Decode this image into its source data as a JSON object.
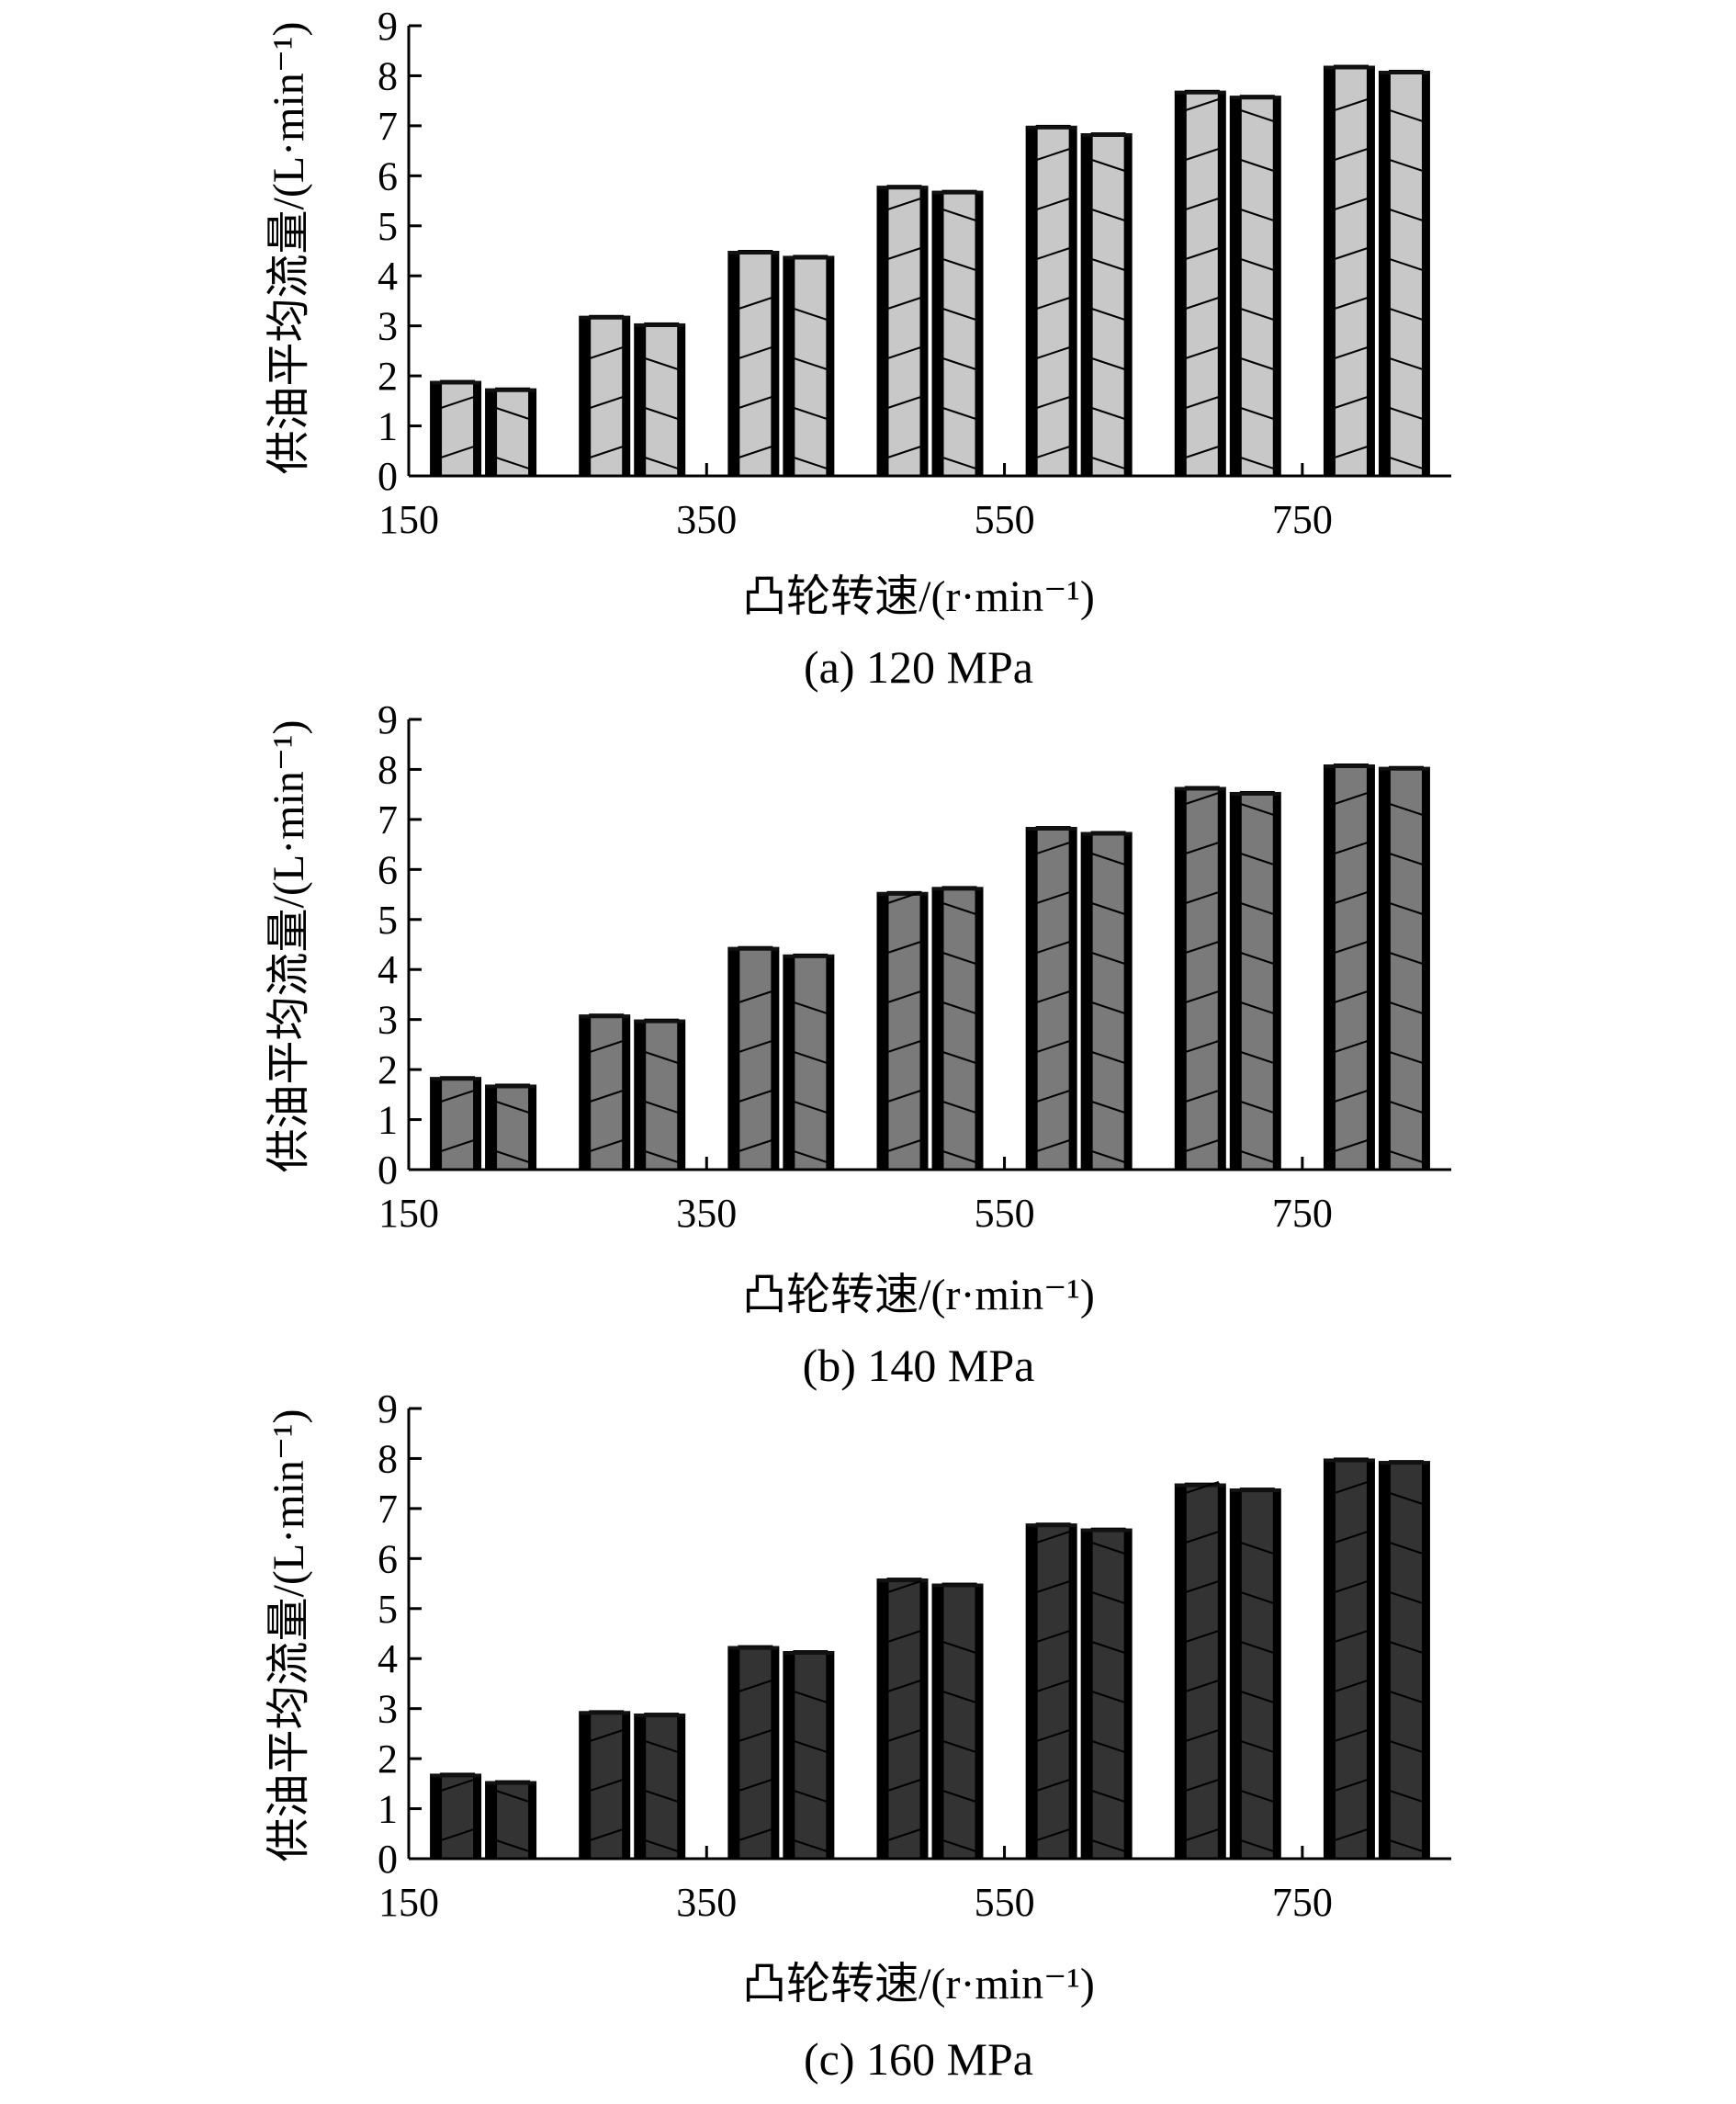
{
  "figure": {
    "panels": [
      {
        "caption": "(a) 120 MPa",
        "ylabel": "供油平均流量/(L·min⁻¹)",
        "xlabel": "凸轮转速/(r·min⁻¹)",
        "bar_color": "#c8c8c8"
      },
      {
        "caption": "(b) 140 MPa",
        "ylabel": "供油平均流量/(L·min⁻¹)",
        "xlabel": "凸轮转速/(r·min⁻¹)",
        "bar_color": "#7a7a7a"
      },
      {
        "caption": "(c) 160 MPa",
        "ylabel": "供油平均流量/(L·min⁻¹)",
        "xlabel": "凸轮转速/(r·min⁻¹)",
        "bar_color": "#333333"
      }
    ]
  },
  "chart_data": [
    {
      "type": "bar",
      "title": "(a) 120 MPa",
      "xlabel": "凸轮转速/(r·min⁻¹)",
      "ylabel": "供油平均流量/(L·min⁻¹)",
      "ylim": [
        0,
        9
      ],
      "yticks": [
        0,
        1,
        2,
        3,
        4,
        5,
        6,
        7,
        8,
        9
      ],
      "xlim": [
        150,
        850
      ],
      "xticks": [
        150,
        350,
        550,
        750
      ],
      "x": [
        200,
        300,
        400,
        500,
        600,
        700,
        800
      ],
      "series": [
        {
          "values": [
            1.9,
            3.2,
            4.5,
            5.8,
            7.0,
            7.7,
            8.2
          ]
        },
        {
          "values": [
            1.75,
            3.05,
            4.4,
            5.7,
            6.85,
            7.6,
            8.1
          ]
        }
      ],
      "grid": false,
      "bar_color": "#c8c8c8"
    },
    {
      "type": "bar",
      "title": "(b) 140 MPa",
      "xlabel": "凸轮转速/(r·min⁻¹)",
      "ylabel": "供油平均流量/(L·min⁻¹)",
      "ylim": [
        0,
        9
      ],
      "yticks": [
        0,
        1,
        2,
        3,
        4,
        5,
        6,
        7,
        8,
        9
      ],
      "xlim": [
        150,
        850
      ],
      "xticks": [
        150,
        350,
        550,
        750
      ],
      "x": [
        200,
        300,
        400,
        500,
        600,
        700,
        800
      ],
      "series": [
        {
          "values": [
            1.85,
            3.1,
            4.45,
            5.55,
            6.85,
            7.65,
            8.1
          ]
        },
        {
          "values": [
            1.7,
            3.0,
            4.3,
            5.65,
            6.75,
            7.55,
            8.05
          ]
        }
      ],
      "grid": false,
      "bar_color": "#7a7a7a"
    },
    {
      "type": "bar",
      "title": "(c) 160 MPa",
      "xlabel": "凸轮转速/(r·min⁻¹)",
      "ylabel": "供油平均流量/(L·min⁻¹)",
      "ylim": [
        0,
        9
      ],
      "yticks": [
        0,
        1,
        2,
        3,
        4,
        5,
        6,
        7,
        8,
        9
      ],
      "xlim": [
        150,
        850
      ],
      "xticks": [
        150,
        350,
        550,
        750
      ],
      "x": [
        200,
        300,
        400,
        500,
        600,
        700,
        800
      ],
      "series": [
        {
          "values": [
            1.7,
            2.95,
            4.25,
            5.6,
            6.7,
            7.5,
            8.0
          ]
        },
        {
          "values": [
            1.55,
            2.9,
            4.15,
            5.5,
            6.6,
            7.4,
            7.95
          ]
        }
      ],
      "grid": false,
      "bar_color": "#333333"
    }
  ]
}
